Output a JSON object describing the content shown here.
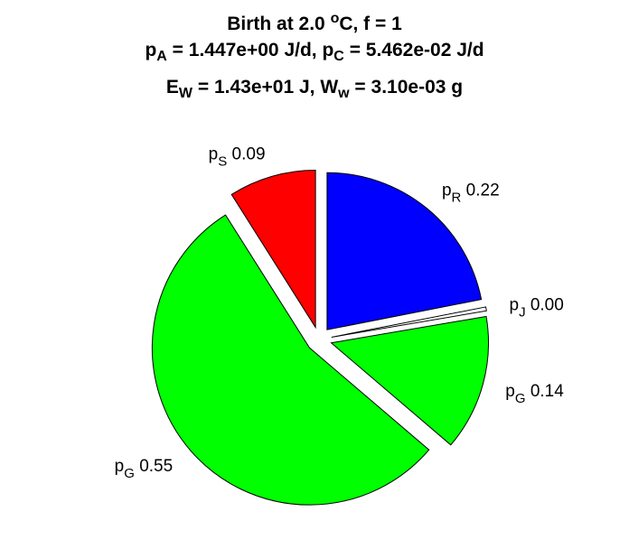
{
  "chart_data": {
    "type": "pie",
    "title": {
      "line1": {
        "prefix": "Birth at 2.0 ",
        "sup": "o",
        "suffix": "C, f = 1"
      },
      "line2": {
        "p1": "p",
        "p1_sub": "A",
        "p1_val": " = 1.447e+00 J/d, ",
        "p2": "p",
        "p2_sub": "C",
        "p2_val": " = 5.462e-02 J/d"
      },
      "line3": {
        "e": "E",
        "e_sub": "W",
        "e_val": " = 1.43e+01 J, ",
        "w": "W",
        "w_sub": "w",
        "w_val": " = 3.10e-03 g"
      }
    },
    "slices": [
      {
        "label": "p",
        "sub": "R",
        "value_text": "0.22",
        "value": 0.22,
        "color": "#0000ff",
        "exploded": true
      },
      {
        "label": "p",
        "sub": "J",
        "value_text": "0.00",
        "value": 0.004,
        "color": "#ffffff",
        "exploded": true
      },
      {
        "label": "p",
        "sub": "G",
        "value_text": "0.14",
        "value": 0.14,
        "color": "#00ff00",
        "exploded": true
      },
      {
        "label": "p",
        "sub": "G",
        "value_text": "0.55",
        "value": 0.55,
        "color": "#00ff00",
        "exploded": true
      },
      {
        "label": "p",
        "sub": "S",
        "value_text": "0.09",
        "value": 0.09,
        "color": "#ff0000",
        "exploded": true
      }
    ]
  }
}
